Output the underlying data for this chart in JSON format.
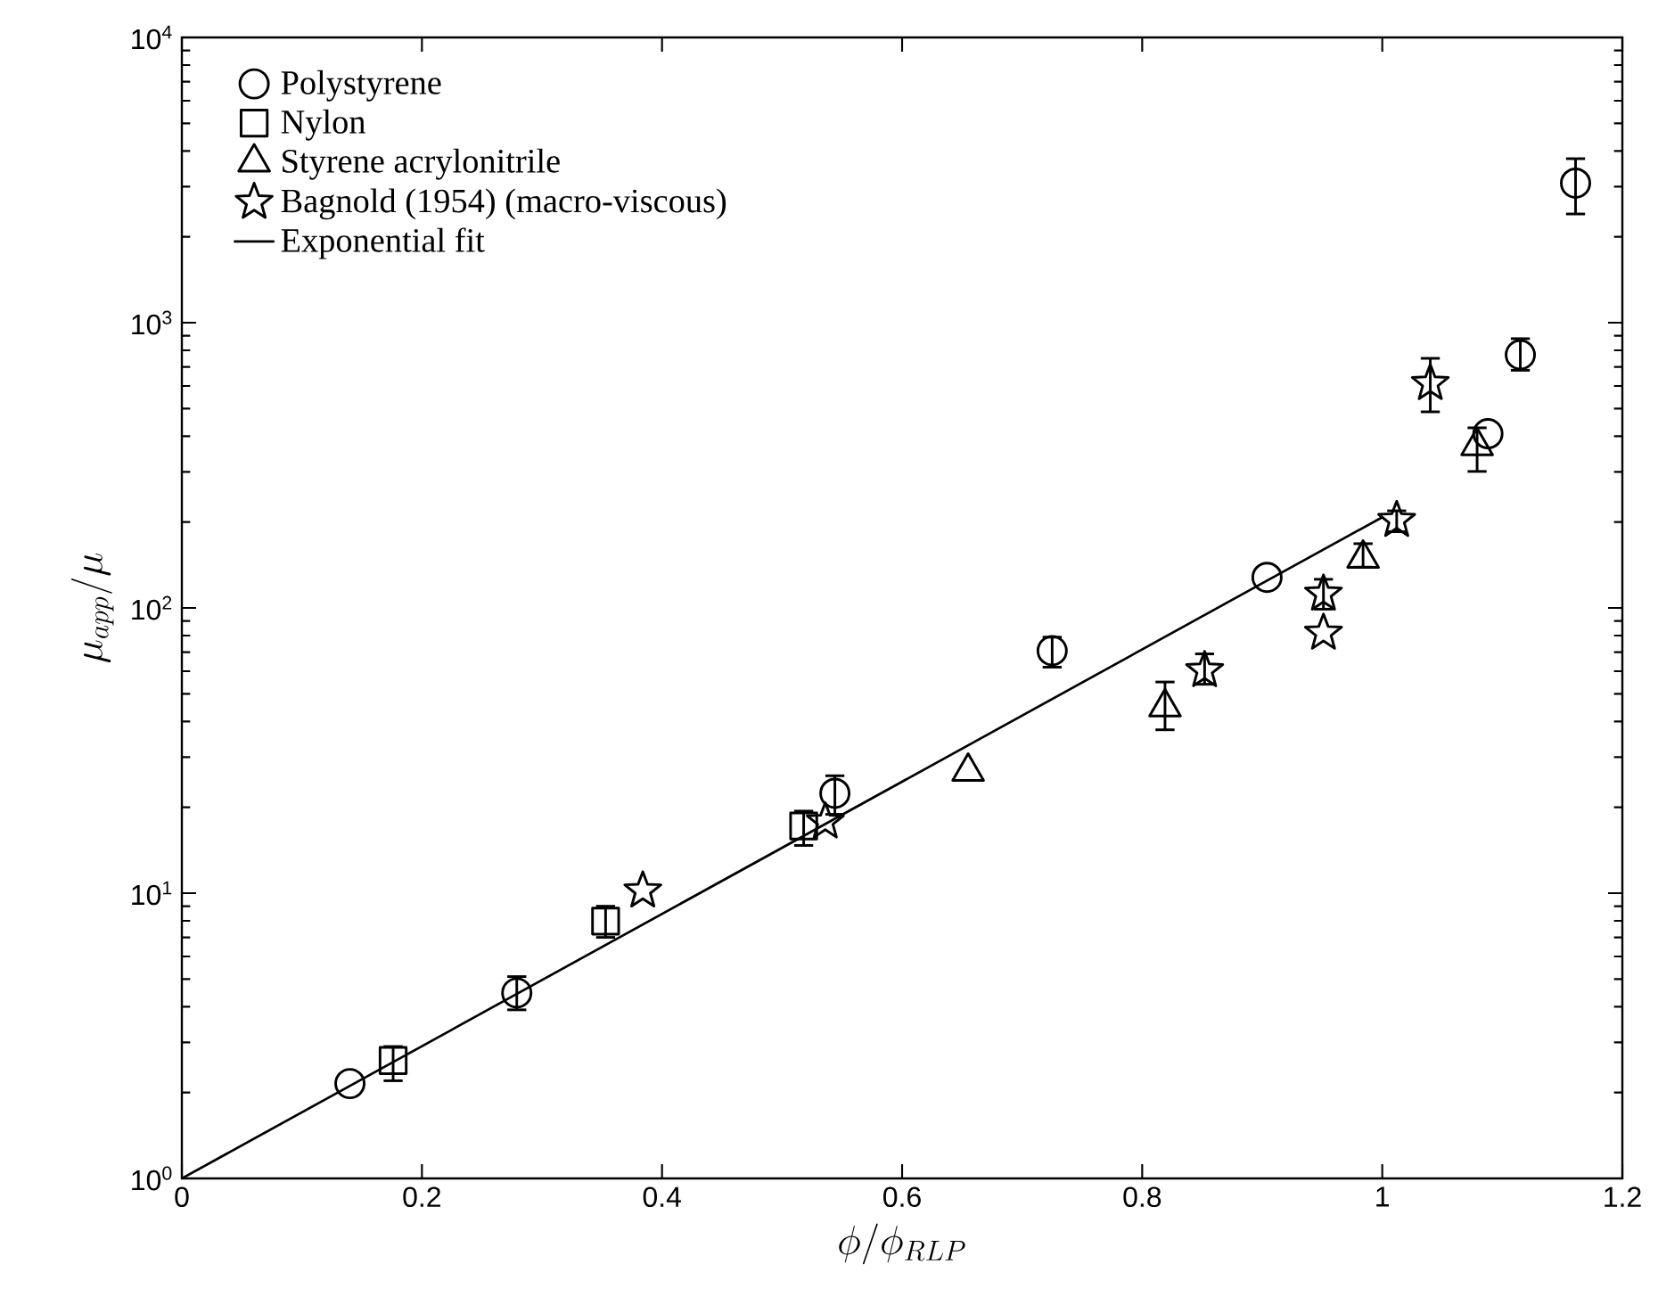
{
  "chart_data": {
    "type": "scatter",
    "xlabel": "\\phi/\\phi_{RLP}",
    "ylabel": "\\mu_{app}/\\mu",
    "log": "y",
    "legend": "top left",
    "xlim": [
      0,
      1.2
    ],
    "xticks": [
      0,
      0.2,
      0.4,
      0.6,
      0.8,
      1,
      1.2
    ],
    "ylim": [
      1,
      10000
    ],
    "yticks": [
      {
        "value": 1,
        "label": "10$^{0}$"
      },
      {
        "value": 10,
        "label": "10$^{1}$"
      },
      {
        "value": 100,
        "label": "10$^{2}$"
      },
      {
        "value": 1000,
        "label": "10$^{3}$"
      },
      {
        "value": 10000,
        "label": "10$^{4}$"
      }
    ],
    "series": [
      {
        "name": "Polystyrene",
        "color": "#000000",
        "marker": "circle",
        "x": [
          0.14,
          0.279,
          0.544,
          0.725,
          0.904,
          1.088,
          1.115,
          1.161
        ],
        "values": [
          2.15,
          4.47,
          22.4,
          70.8,
          128,
          408,
          772,
          3085
        ],
        "errors": [
          null,
          [
            3.9,
            5.1
          ],
          [
            18.9,
            25.8
          ],
          [
            62,
            79
          ],
          null,
          null,
          [
            681,
            879
          ],
          [
            2405,
            3758
          ]
        ]
      },
      {
        "name": "Nylon",
        "color": "#000000",
        "marker": "square",
        "x": [
          0.176,
          0.353,
          0.518
        ],
        "values": [
          2.59,
          7.98,
          17.2
        ],
        "errors": [
          [
            2.2,
            2.9
          ],
          [
            7.0,
            9.0
          ],
          [
            14.7,
            19.4
          ]
        ]
      },
      {
        "name": "Styrene acrylonitrile",
        "color": "#000000",
        "marker": "triangle",
        "x": [
          0.655,
          0.819,
          0.984,
          1.079
        ],
        "values": [
          26.7,
          44.9,
          149,
          370
        ],
        "errors": [
          null,
          [
            37.4,
            55
          ],
          [
            139,
            168
          ],
          [
            301,
            428
          ]
        ]
      },
      {
        "name": "Bagnold (1954) (macro-viscous)",
        "color": "#000000",
        "marker": "star",
        "x": [
          0.384,
          0.536,
          0.852,
          0.951,
          0.951,
          1.012,
          1.04
        ],
        "values": [
          10.2,
          17.8,
          60.4,
          112,
          81.7,
          203,
          613
        ],
        "errors": [
          null,
          null,
          [
            54,
            69
          ],
          [
            99,
            126
          ],
          null,
          [
            185,
            219
          ],
          [
            487,
            750
          ]
        ]
      },
      {
        "name": "Exponential fit",
        "type": "line",
        "color": "#000000",
        "marker": "none",
        "line_style": "solid",
        "x": [
          0,
          1.0
        ],
        "values": [
          1,
          208
        ]
      }
    ]
  }
}
